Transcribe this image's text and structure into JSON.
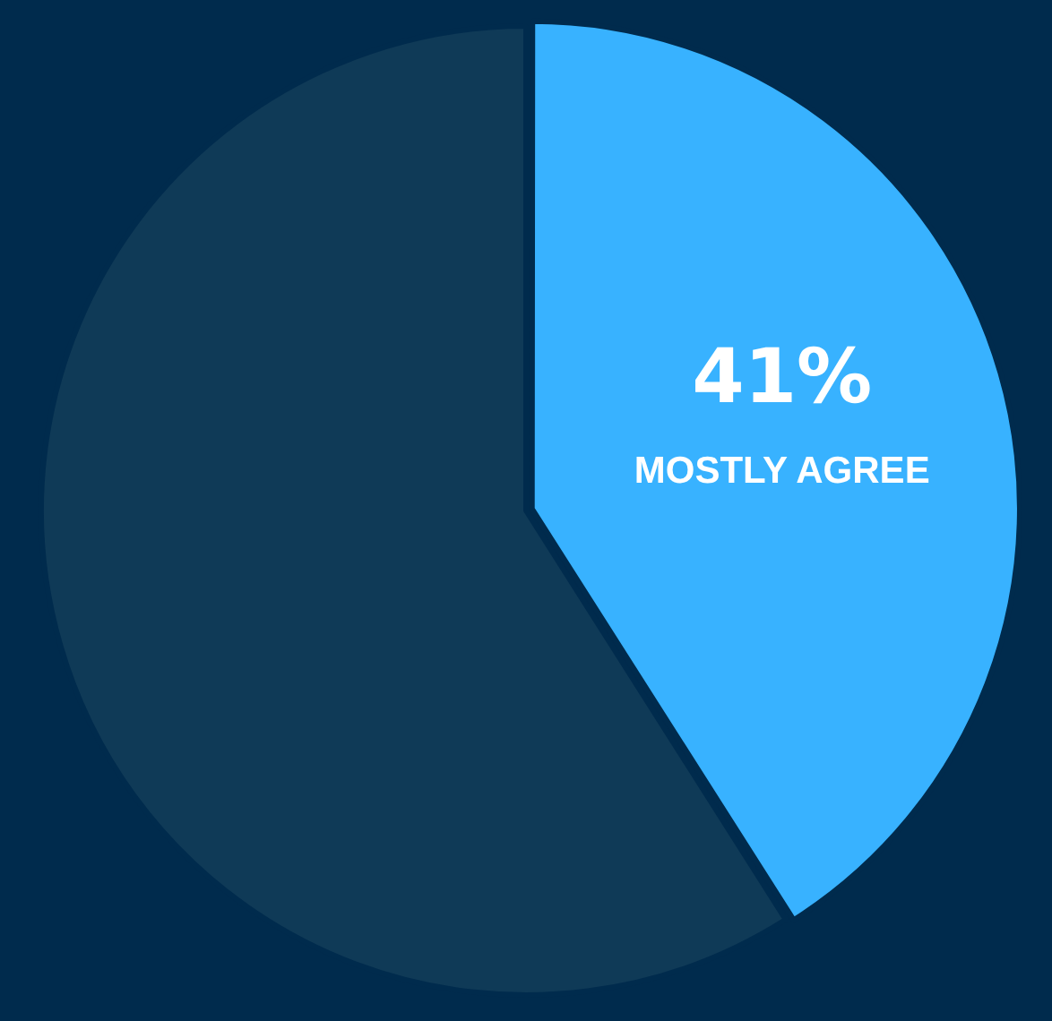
{
  "chart_data": {
    "type": "pie",
    "categories": [
      "MOSTLY AGREE",
      null
    ],
    "values": [
      41,
      59
    ],
    "colors": [
      "#38b2ff",
      "#0f3a57"
    ],
    "value_labels": [
      "41%",
      null
    ],
    "legend": false
  }
}
